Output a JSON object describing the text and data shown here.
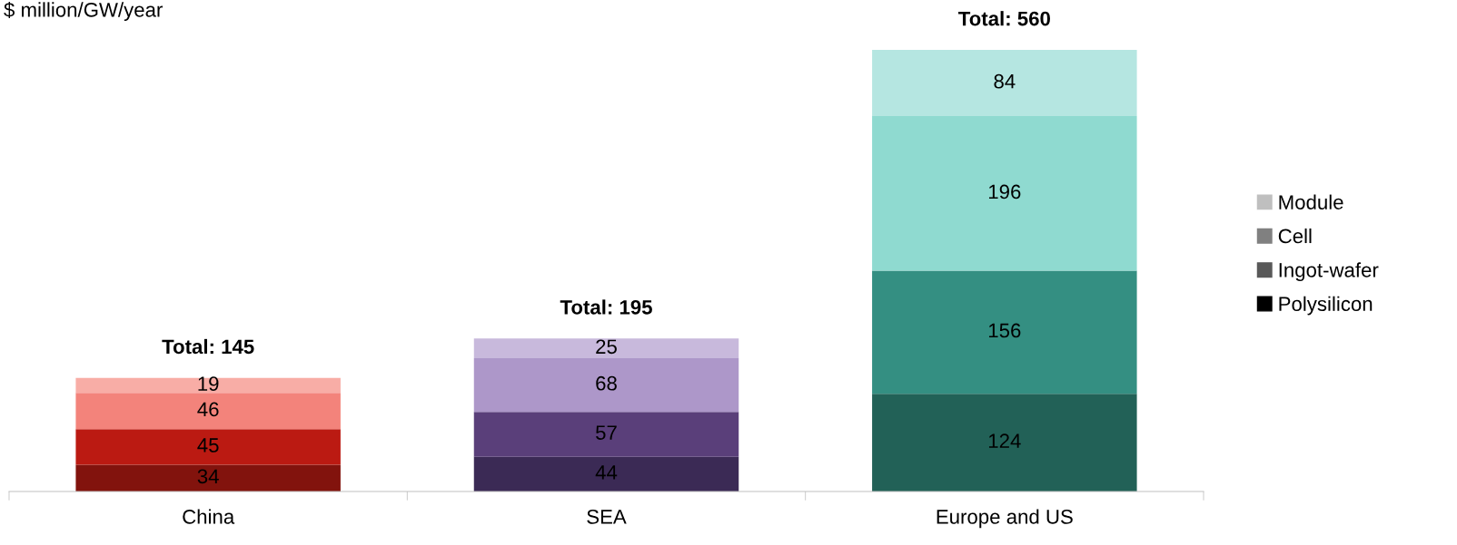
{
  "chart_data": {
    "type": "bar",
    "stacked": true,
    "ylabel": "$ million/GW/year",
    "categories": [
      "China",
      "SEA",
      "Europe and US"
    ],
    "series": [
      {
        "name": "Polysilicon",
        "color": "#000000",
        "colors": [
          "#82130d",
          "#3b2a55",
          "#226157"
        ],
        "values": [
          34,
          44,
          124
        ]
      },
      {
        "name": "Ingot-wafer",
        "color": "#595959",
        "colors": [
          "#bb1a12",
          "#5a3f7a",
          "#348f82"
        ],
        "values": [
          45,
          57,
          156
        ]
      },
      {
        "name": "Cell",
        "color": "#808080",
        "colors": [
          "#f3837b",
          "#ad97c9",
          "#8fdad0"
        ],
        "values": [
          46,
          68,
          196
        ]
      },
      {
        "name": "Module",
        "color": "#bfbfbf",
        "colors": [
          "#f8ada6",
          "#c8b9dc",
          "#b5e6e1"
        ],
        "values": [
          19,
          25,
          84
        ]
      }
    ],
    "data_labels": true,
    "totals": [
      "Total: 145",
      "Total: 195",
      "Total: 560"
    ],
    "legend": "right",
    "grid": false
  }
}
